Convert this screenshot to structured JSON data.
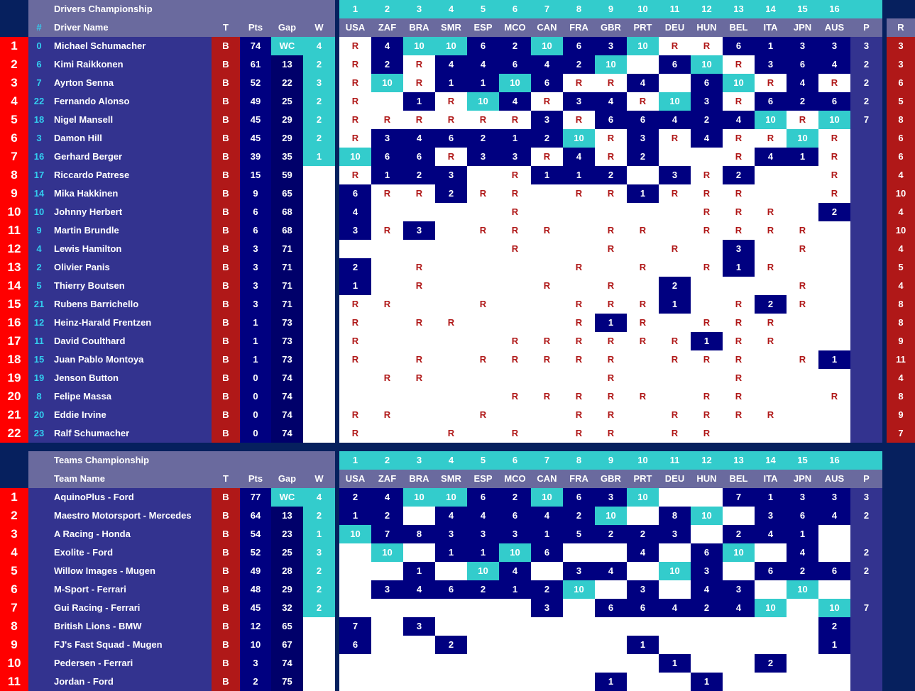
{
  "colors": {
    "background": "#06205e",
    "panel": "#33338f",
    "header": "#6a6a9e",
    "accent": "#33cccc",
    "team_col": "#b01818",
    "rank": "#ff0000",
    "cell": "#000080"
  },
  "races": {
    "numbers": [
      "1",
      "2",
      "3",
      "4",
      "5",
      "6",
      "7",
      "8",
      "9",
      "10",
      "11",
      "12",
      "13",
      "14",
      "15",
      "16"
    ],
    "codes": [
      "USA",
      "ZAF",
      "BRA",
      "SMR",
      "ESP",
      "MCO",
      "CAN",
      "FRA",
      "GBR",
      "PRT",
      "DEU",
      "HUN",
      "BEL",
      "ITA",
      "JPN",
      "AUS"
    ]
  },
  "drivers": {
    "title": "Drivers Championship",
    "headers": {
      "num": "#",
      "name": "Driver Name",
      "t": "T",
      "pts": "Pts",
      "gap": "Gap",
      "w": "W",
      "p": "P",
      "r": "R"
    },
    "rows": [
      {
        "pos": "1",
        "num": "0",
        "name": "Michael Schumacher",
        "t": "B",
        "pts": "74",
        "gap": "WC",
        "w": "4",
        "res": [
          "R",
          "4",
          "10",
          "10",
          "6",
          "2",
          "10",
          "6",
          "3",
          "10",
          "R",
          "R",
          "6",
          "1",
          "3",
          "3"
        ],
        "p": "3",
        "r": "3"
      },
      {
        "pos": "2",
        "num": "6",
        "name": "Kimi Raikkonen",
        "t": "B",
        "pts": "61",
        "gap": "13",
        "w": "2",
        "res": [
          "R",
          "2",
          "R",
          "4",
          "4",
          "6",
          "4",
          "2",
          "10",
          "",
          "6",
          "10",
          "R",
          "3",
          "6",
          "4"
        ],
        "p": "2",
        "r": "3"
      },
      {
        "pos": "3",
        "num": "7",
        "name": "Ayrton Senna",
        "t": "B",
        "pts": "52",
        "gap": "22",
        "w": "3",
        "res": [
          "R",
          "10",
          "R",
          "1",
          "1",
          "10",
          "6",
          "R",
          "R",
          "4",
          "",
          "6",
          "10",
          "R",
          "4",
          "R"
        ],
        "p": "2",
        "r": "6"
      },
      {
        "pos": "4",
        "num": "22",
        "name": "Fernando Alonso",
        "t": "B",
        "pts": "49",
        "gap": "25",
        "w": "2",
        "res": [
          "R",
          "",
          "1",
          "R",
          "10",
          "4",
          "R",
          "3",
          "4",
          "R",
          "10",
          "3",
          "R",
          "6",
          "2",
          "6"
        ],
        "p": "2",
        "r": "5"
      },
      {
        "pos": "5",
        "num": "18",
        "name": "Nigel Mansell",
        "t": "B",
        "pts": "45",
        "gap": "29",
        "w": "2",
        "res": [
          "R",
          "R",
          "R",
          "R",
          "R",
          "R",
          "3",
          "R",
          "6",
          "6",
          "4",
          "2",
          "4",
          "10",
          "R",
          "10"
        ],
        "p": "7",
        "r": "8"
      },
      {
        "pos": "6",
        "num": "3",
        "name": "Damon Hill",
        "t": "B",
        "pts": "45",
        "gap": "29",
        "w": "2",
        "res": [
          "R",
          "3",
          "4",
          "6",
          "2",
          "1",
          "2",
          "10",
          "R",
          "3",
          "R",
          "4",
          "R",
          "R",
          "10",
          "R"
        ],
        "p": "",
        "r": "6"
      },
      {
        "pos": "7",
        "num": "16",
        "name": "Gerhard Berger",
        "t": "B",
        "pts": "39",
        "gap": "35",
        "w": "1",
        "res": [
          "10",
          "6",
          "6",
          "R",
          "3",
          "3",
          "R",
          "4",
          "R",
          "2",
          "",
          "",
          "R",
          "4",
          "1",
          "R"
        ],
        "p": "",
        "r": "6"
      },
      {
        "pos": "8",
        "num": "17",
        "name": "Riccardo Patrese",
        "t": "B",
        "pts": "15",
        "gap": "59",
        "w": "",
        "res": [
          "R",
          "1",
          "2",
          "3",
          "",
          "R",
          "1",
          "1",
          "2",
          "",
          "3",
          "R",
          "2",
          "",
          "",
          "R"
        ],
        "p": "",
        "r": "4"
      },
      {
        "pos": "9",
        "num": "14",
        "name": "Mika Hakkinen",
        "t": "B",
        "pts": "9",
        "gap": "65",
        "w": "",
        "res": [
          "6",
          "R",
          "R",
          "2",
          "R",
          "R",
          "",
          "R",
          "R",
          "1",
          "R",
          "R",
          "R",
          "",
          "",
          "R"
        ],
        "p": "",
        "r": "10"
      },
      {
        "pos": "10",
        "num": "10",
        "name": "Johnny Herbert",
        "t": "B",
        "pts": "6",
        "gap": "68",
        "w": "",
        "res": [
          "4",
          "",
          "",
          "",
          "",
          "R",
          "",
          "",
          "",
          "",
          "",
          "R",
          "R",
          "R",
          "",
          "2"
        ],
        "p": "",
        "r": "4"
      },
      {
        "pos": "11",
        "num": "9",
        "name": "Martin Brundle",
        "t": "B",
        "pts": "6",
        "gap": "68",
        "w": "",
        "res": [
          "3",
          "R",
          "3",
          "",
          "R",
          "R",
          "R",
          "",
          "R",
          "R",
          "",
          "R",
          "R",
          "R",
          "R",
          ""
        ],
        "p": "",
        "r": "10"
      },
      {
        "pos": "12",
        "num": "4",
        "name": "Lewis Hamilton",
        "t": "B",
        "pts": "3",
        "gap": "71",
        "w": "",
        "res": [
          "",
          "",
          "",
          "",
          "",
          "R",
          "",
          "",
          "R",
          "",
          "R",
          "",
          "3",
          "",
          "R",
          ""
        ],
        "p": "",
        "r": "4"
      },
      {
        "pos": "13",
        "num": "2",
        "name": "Olivier Panis",
        "t": "B",
        "pts": "3",
        "gap": "71",
        "w": "",
        "res": [
          "2",
          "",
          "R",
          "",
          "",
          "",
          "",
          "R",
          "",
          "R",
          "",
          "R",
          "1",
          "R",
          "",
          ""
        ],
        "p": "",
        "r": "5"
      },
      {
        "pos": "14",
        "num": "5",
        "name": "Thierry Boutsen",
        "t": "B",
        "pts": "3",
        "gap": "71",
        "w": "",
        "res": [
          "1",
          "",
          "R",
          "",
          "",
          "",
          "R",
          "",
          "R",
          "",
          "2",
          "",
          "",
          "",
          "R",
          ""
        ],
        "p": "",
        "r": "4"
      },
      {
        "pos": "15",
        "num": "21",
        "name": "Rubens Barrichello",
        "t": "B",
        "pts": "3",
        "gap": "71",
        "w": "",
        "res": [
          "R",
          "R",
          "",
          "",
          "R",
          "",
          "",
          "R",
          "R",
          "R",
          "1",
          "",
          "R",
          "2",
          "R",
          ""
        ],
        "p": "",
        "r": "8"
      },
      {
        "pos": "16",
        "num": "12",
        "name": "Heinz-Harald Frentzen",
        "t": "B",
        "pts": "1",
        "gap": "73",
        "w": "",
        "res": [
          "R",
          "",
          "R",
          "R",
          "",
          "",
          "",
          "R",
          "1",
          "R",
          "",
          "R",
          "R",
          "R",
          "",
          ""
        ],
        "p": "",
        "r": "8"
      },
      {
        "pos": "17",
        "num": "11",
        "name": "David Coulthard",
        "t": "B",
        "pts": "1",
        "gap": "73",
        "w": "",
        "res": [
          "R",
          "",
          "",
          "",
          "",
          "R",
          "R",
          "R",
          "R",
          "R",
          "R",
          "1",
          "R",
          "R",
          "",
          ""
        ],
        "p": "",
        "r": "9"
      },
      {
        "pos": "18",
        "num": "15",
        "name": "Juan Pablo Montoya",
        "t": "B",
        "pts": "1",
        "gap": "73",
        "w": "",
        "res": [
          "R",
          "",
          "R",
          "",
          "R",
          "R",
          "R",
          "R",
          "R",
          "",
          "R",
          "R",
          "R",
          "",
          "R",
          "1"
        ],
        "p": "",
        "r": "11"
      },
      {
        "pos": "19",
        "num": "19",
        "name": "Jenson Button",
        "t": "B",
        "pts": "0",
        "gap": "74",
        "w": "",
        "res": [
          "",
          "R",
          "R",
          "",
          "",
          "",
          "",
          "",
          "R",
          "",
          "",
          "",
          "R",
          "",
          "",
          ""
        ],
        "p": "",
        "r": "4"
      },
      {
        "pos": "20",
        "num": "8",
        "name": "Felipe Massa",
        "t": "B",
        "pts": "0",
        "gap": "74",
        "w": "",
        "res": [
          "",
          "",
          "",
          "",
          "",
          "R",
          "R",
          "R",
          "R",
          "R",
          "",
          "R",
          "R",
          "",
          "",
          "R"
        ],
        "p": "",
        "r": "8"
      },
      {
        "pos": "21",
        "num": "20",
        "name": "Eddie Irvine",
        "t": "B",
        "pts": "0",
        "gap": "74",
        "w": "",
        "res": [
          "R",
          "R",
          "",
          "",
          "R",
          "",
          "",
          "R",
          "R",
          "",
          "R",
          "R",
          "R",
          "R",
          "",
          ""
        ],
        "p": "",
        "r": "9"
      },
      {
        "pos": "22",
        "num": "23",
        "name": "Ralf Schumacher",
        "t": "B",
        "pts": "0",
        "gap": "74",
        "w": "",
        "res": [
          "R",
          "",
          "",
          "R",
          "",
          "R",
          "",
          "R",
          "R",
          "",
          "R",
          "R",
          "",
          "",
          "",
          ""
        ],
        "p": "",
        "r": "7"
      }
    ]
  },
  "teams": {
    "title": "Teams Championship",
    "headers": {
      "name": "Team Name",
      "t": "T",
      "pts": "Pts",
      "gap": "Gap",
      "w": "W",
      "p": "P"
    },
    "rows": [
      {
        "pos": "1",
        "name": "AquinoPlus - Ford",
        "t": "B",
        "pts": "77",
        "gap": "WC",
        "w": "4",
        "res": [
          "2",
          "4",
          "10",
          "10",
          "6",
          "2",
          "10",
          "6",
          "3",
          "10",
          "",
          "",
          "7",
          "1",
          "3",
          "3"
        ],
        "p": "3"
      },
      {
        "pos": "2",
        "name": "Maestro Motorsport - Mercedes",
        "t": "B",
        "pts": "64",
        "gap": "13",
        "w": "2",
        "res": [
          "1",
          "2",
          "",
          "4",
          "4",
          "6",
          "4",
          "2",
          "10",
          "",
          "8",
          "10",
          "",
          "3",
          "6",
          "4"
        ],
        "p": "2"
      },
      {
        "pos": "3",
        "name": "A Racing - Honda",
        "t": "B",
        "pts": "54",
        "gap": "23",
        "w": "1",
        "res": [
          "10",
          "7",
          "8",
          "3",
          "3",
          "3",
          "1",
          "5",
          "2",
          "2",
          "3",
          "",
          "2",
          "4",
          "1",
          ""
        ],
        "p": ""
      },
      {
        "pos": "4",
        "name": "Exolite - Ford",
        "t": "B",
        "pts": "52",
        "gap": "25",
        "w": "3",
        "res": [
          "",
          "10",
          "",
          "1",
          "1",
          "10",
          "6",
          "",
          "",
          "4",
          "",
          "6",
          "10",
          "",
          "4",
          ""
        ],
        "p": "2"
      },
      {
        "pos": "5",
        "name": "Willow Images - Mugen",
        "t": "B",
        "pts": "49",
        "gap": "28",
        "w": "2",
        "res": [
          "",
          "",
          "1",
          "",
          "10",
          "4",
          "",
          "3",
          "4",
          "",
          "10",
          "3",
          "",
          "6",
          "2",
          "6"
        ],
        "p": "2"
      },
      {
        "pos": "6",
        "name": "M-Sport - Ferrari",
        "t": "B",
        "pts": "48",
        "gap": "29",
        "w": "2",
        "res": [
          "",
          "3",
          "4",
          "6",
          "2",
          "1",
          "2",
          "10",
          "",
          "3",
          "",
          "4",
          "3",
          "",
          "10",
          ""
        ],
        "p": ""
      },
      {
        "pos": "7",
        "name": "Gui Racing - Ferrari",
        "t": "B",
        "pts": "45",
        "gap": "32",
        "w": "2",
        "res": [
          "",
          "",
          "",
          "",
          "",
          "",
          "3",
          "",
          "6",
          "6",
          "4",
          "2",
          "4",
          "10",
          "",
          "10"
        ],
        "p": "7"
      },
      {
        "pos": "8",
        "name": "British Lions - BMW",
        "t": "B",
        "pts": "12",
        "gap": "65",
        "w": "",
        "res": [
          "7",
          "",
          "3",
          "",
          "",
          "",
          "",
          "",
          "",
          "",
          "",
          "",
          "",
          "",
          "",
          "2"
        ],
        "p": ""
      },
      {
        "pos": "9",
        "name": "FJ's Fast Squad - Mugen",
        "t": "B",
        "pts": "10",
        "gap": "67",
        "w": "",
        "res": [
          "6",
          "",
          "",
          "2",
          "",
          "",
          "",
          "",
          "",
          "1",
          "",
          "",
          "",
          "",
          "",
          "1"
        ],
        "p": ""
      },
      {
        "pos": "10",
        "name": "Pedersen - Ferrari",
        "t": "B",
        "pts": "3",
        "gap": "74",
        "w": "",
        "res": [
          "",
          "",
          "",
          "",
          "",
          "",
          "",
          "",
          "",
          "",
          "1",
          "",
          "",
          "2",
          "",
          ""
        ],
        "p": ""
      },
      {
        "pos": "11",
        "name": "Jordan - Ford",
        "t": "B",
        "pts": "2",
        "gap": "75",
        "w": "",
        "res": [
          "",
          "",
          "",
          "",
          "",
          "",
          "",
          "",
          "1",
          "",
          "",
          "1",
          "",
          "",
          "",
          ""
        ],
        "p": ""
      }
    ]
  }
}
